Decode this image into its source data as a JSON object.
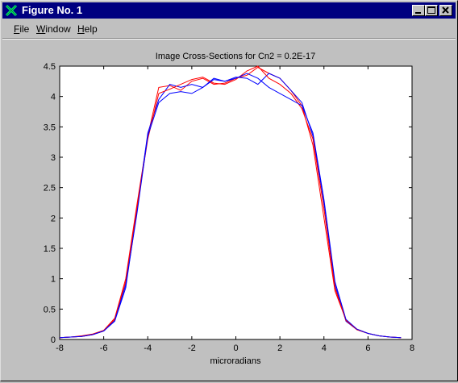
{
  "window": {
    "title": "Figure No. 1",
    "minimize_icon": "minimize-icon",
    "maximize_icon": "maximize-icon",
    "close_icon": "close-icon"
  },
  "menu": {
    "items": [
      {
        "label": "File",
        "accel": "F"
      },
      {
        "label": "Window",
        "accel": "W"
      },
      {
        "label": "Help",
        "accel": "H"
      }
    ]
  },
  "colors": {
    "titlebar": "#000080",
    "series_red": "#ff0000",
    "series_blue": "#0000ff"
  },
  "chart_data": {
    "type": "line",
    "title": "Image Cross-Sections for Cn2 = 0.2E-17",
    "xlabel": "microradians",
    "ylabel": "",
    "xlim": [
      -8,
      8
    ],
    "ylim": [
      0,
      4.5
    ],
    "xticks": [
      -8,
      -6,
      -4,
      -2,
      0,
      2,
      4,
      6,
      8
    ],
    "yticks": [
      0,
      0.5,
      1,
      1.5,
      2,
      2.5,
      3,
      3.5,
      4,
      4.5
    ],
    "xtick_labels": [
      "-8",
      "-6",
      "-4",
      "-2",
      "0",
      "2",
      "4",
      "6",
      "8"
    ],
    "ytick_labels": [
      "0",
      "0.5",
      "1",
      "1.5",
      "2",
      "2.5",
      "3",
      "3.5",
      "4",
      "4.5"
    ],
    "grid": false,
    "legend": "none",
    "x": [
      -8,
      -7.5,
      -7,
      -6.5,
      -6,
      -5.5,
      -5,
      -4.5,
      -4,
      -3.5,
      -3,
      -2.5,
      -2,
      -1.5,
      -1,
      -0.5,
      0,
      0.5,
      1,
      1.5,
      2,
      2.5,
      3,
      3.5,
      4,
      4.5,
      5,
      5.5,
      6,
      6.5,
      7,
      7.5
    ],
    "series": [
      {
        "color": "#ff0000",
        "values": [
          0.03,
          0.04,
          0.06,
          0.09,
          0.15,
          0.35,
          1.0,
          2.2,
          3.35,
          4.15,
          4.18,
          4.1,
          4.25,
          4.3,
          4.2,
          4.22,
          4.3,
          4.35,
          4.48,
          4.38,
          4.3,
          4.1,
          3.85,
          3.2,
          2.0,
          0.8,
          0.32,
          0.17,
          0.1,
          0.06,
          0.04,
          0.03
        ]
      },
      {
        "color": "#0000ff",
        "values": [
          0.03,
          0.04,
          0.05,
          0.08,
          0.14,
          0.3,
          0.85,
          2.1,
          3.4,
          3.95,
          4.2,
          4.15,
          4.2,
          4.15,
          4.28,
          4.25,
          4.32,
          4.3,
          4.2,
          4.38,
          4.3,
          4.1,
          3.9,
          3.35,
          2.25,
          0.9,
          0.3,
          0.16,
          0.1,
          0.06,
          0.04,
          0.03
        ]
      },
      {
        "color": "#ff0000",
        "values": [
          0.03,
          0.04,
          0.05,
          0.08,
          0.14,
          0.33,
          0.95,
          2.15,
          3.3,
          4.05,
          4.12,
          4.2,
          4.28,
          4.32,
          4.22,
          4.2,
          4.28,
          4.42,
          4.5,
          4.3,
          4.2,
          4.05,
          3.8,
          3.3,
          2.15,
          0.85,
          0.31,
          0.16,
          0.1,
          0.06,
          0.04,
          0.03
        ]
      },
      {
        "color": "#0000ff",
        "values": [
          0.03,
          0.04,
          0.05,
          0.08,
          0.14,
          0.31,
          0.9,
          2.05,
          3.35,
          3.9,
          4.05,
          4.08,
          4.05,
          4.15,
          4.3,
          4.25,
          4.3,
          4.38,
          4.3,
          4.15,
          4.05,
          3.95,
          3.85,
          3.4,
          2.3,
          0.95,
          0.33,
          0.17,
          0.1,
          0.06,
          0.04,
          0.03
        ]
      }
    ]
  }
}
